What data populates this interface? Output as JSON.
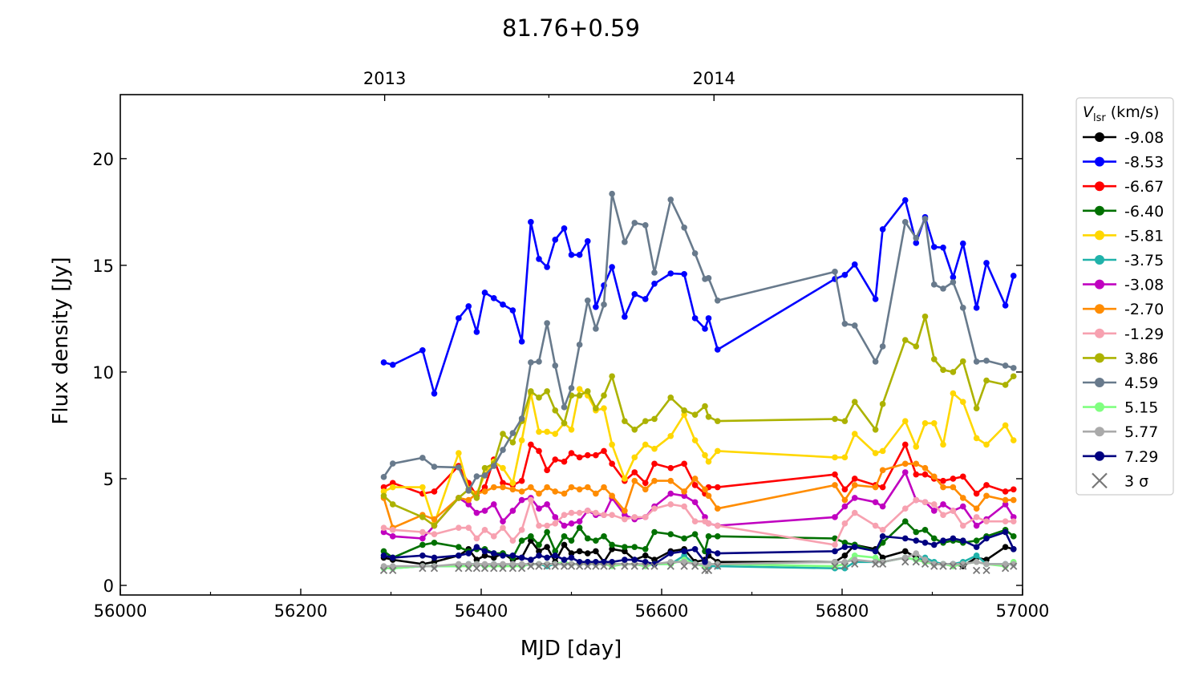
{
  "chart_data": {
    "type": "line",
    "title": "81.76+0.59",
    "xlabel": "MJD [day]",
    "ylabel": "Flux density [Jy]",
    "xlim": [
      56000,
      57000
    ],
    "ylim": [
      -0.45,
      23
    ],
    "xticks": [
      56000,
      56200,
      56400,
      56600,
      56800,
      57000
    ],
    "xminor": [
      56100,
      56300,
      56500,
      56700,
      56900
    ],
    "yticks": [
      0,
      5,
      10,
      15,
      20
    ],
    "top_axis": {
      "ticks": [
        {
          "mjd": 56293,
          "label": "2013"
        },
        {
          "mjd": 56658,
          "label": "2014"
        }
      ],
      "minor": [
        56475
      ]
    },
    "legend": {
      "title_main": "V",
      "title_sub": "lsr",
      "title_rest": " (km/s)",
      "placement": "outside-right",
      "sigma_label": "3 σ"
    },
    "x": [
      56292,
      56302,
      56335,
      56348,
      56375,
      56386,
      56395,
      56404,
      56414,
      56424,
      56435,
      56445,
      56455,
      56464,
      56473,
      56482,
      56492,
      56500,
      56509,
      56518,
      56527,
      56536,
      56545,
      56559,
      56570,
      56582,
      56592,
      56610,
      56625,
      56637,
      56648,
      56652,
      56662,
      56792,
      56803,
      56814,
      56837,
      56845,
      56870,
      56882,
      56892,
      56902,
      56912,
      56923,
      56934,
      56949,
      56960,
      56981,
      56990
    ],
    "series": [
      {
        "name": "-9.08",
        "color": "#000000",
        "values": [
          1.3,
          1.2,
          1.0,
          1.1,
          1.4,
          1.7,
          1.2,
          1.4,
          1.3,
          1.5,
          1.2,
          1.3,
          2.1,
          1.6,
          1.8,
          1.1,
          1.9,
          1.5,
          1.6,
          1.5,
          1.6,
          1.1,
          1.7,
          1.6,
          1.2,
          1.4,
          1.2,
          1.6,
          1.7,
          1.1,
          1.2,
          1.4,
          1.1,
          1.1,
          1.4,
          1.9,
          1.7,
          1.3,
          1.6,
          1.3,
          1.1,
          1.0,
          1.0,
          1.0,
          0.9,
          1.3,
          1.2,
          1.8,
          1.7
        ]
      },
      {
        "name": "-8.53",
        "color": "#0000ff",
        "values": [
          10.45,
          10.34,
          11.02,
          8.99,
          12.52,
          13.08,
          11.88,
          13.72,
          13.46,
          13.16,
          12.89,
          11.43,
          17.03,
          15.3,
          14.92,
          16.2,
          16.73,
          15.49,
          15.49,
          16.13,
          13.05,
          14.06,
          14.92,
          12.59,
          13.65,
          13.42,
          14.14,
          14.62,
          14.59,
          12.52,
          12.03,
          12.52,
          11.05,
          14.36,
          14.55,
          15.04,
          13.42,
          16.69,
          18.05,
          16.05,
          17.26,
          15.86,
          15.83,
          14.44,
          16.02,
          13.01,
          15.11,
          13.12,
          14.51
        ]
      },
      {
        "name": "-6.67",
        "color": "#ff0000",
        "values": [
          4.6,
          4.8,
          4.3,
          4.4,
          5.6,
          4.8,
          4.2,
          4.6,
          5.9,
          4.8,
          4.7,
          4.9,
          6.6,
          6.3,
          5.4,
          5.9,
          5.8,
          6.2,
          6.0,
          6.1,
          6.1,
          6.3,
          5.7,
          4.9,
          5.3,
          4.8,
          5.7,
          5.5,
          5.7,
          4.7,
          4.3,
          4.6,
          4.6,
          5.2,
          4.5,
          5.0,
          4.7,
          4.6,
          6.6,
          5.2,
          5.2,
          5.0,
          4.9,
          5.0,
          5.1,
          4.3,
          4.7,
          4.4,
          4.5
        ]
      },
      {
        "name": "-6.40",
        "color": "#007000",
        "values": [
          1.6,
          1.3,
          1.9,
          2.0,
          1.8,
          1.6,
          1.7,
          1.7,
          1.5,
          1.5,
          1.3,
          2.1,
          2.3,
          1.9,
          2.5,
          1.6,
          2.3,
          2.1,
          2.7,
          2.2,
          2.1,
          2.3,
          1.9,
          1.8,
          1.8,
          1.7,
          2.5,
          2.4,
          2.2,
          2.4,
          1.6,
          2.3,
          2.3,
          2.2,
          2.0,
          1.9,
          1.6,
          2.0,
          3.0,
          2.5,
          2.6,
          2.2,
          2.0,
          2.1,
          2.0,
          2.1,
          2.3,
          2.6,
          2.3
        ]
      },
      {
        "name": "-5.81",
        "color": "#ffd700",
        "values": [
          4.4,
          4.6,
          4.6,
          2.9,
          6.2,
          4.5,
          4.3,
          5.2,
          5.8,
          5.5,
          4.8,
          6.8,
          9.0,
          7.2,
          7.2,
          7.1,
          7.6,
          7.3,
          9.2,
          8.9,
          8.2,
          8.3,
          6.6,
          5.0,
          6.0,
          6.6,
          6.4,
          7.0,
          8.0,
          6.8,
          6.1,
          5.8,
          6.3,
          6.0,
          6.0,
          7.1,
          6.2,
          6.3,
          7.7,
          6.5,
          7.6,
          7.6,
          6.6,
          9.0,
          8.6,
          6.9,
          6.6,
          7.5,
          6.8
        ]
      },
      {
        "name": "-3.75",
        "color": "#20b2aa",
        "values": [
          0.8,
          0.8,
          0.9,
          0.9,
          0.9,
          1.0,
          1.0,
          0.9,
          1.0,
          0.9,
          1.0,
          0.9,
          1.0,
          1.0,
          0.9,
          1.0,
          1.0,
          1.0,
          1.0,
          1.1,
          1.0,
          1.0,
          1.0,
          1.0,
          1.0,
          0.9,
          1.0,
          1.0,
          1.4,
          1.0,
          0.9,
          0.9,
          0.9,
          0.8,
          0.8,
          1.1,
          1.1,
          1.1,
          1.3,
          1.2,
          1.3,
          1.1,
          1.0,
          1.0,
          1.1,
          1.4,
          1.0,
          1.0,
          1.0
        ]
      },
      {
        "name": "-3.08",
        "color": "#c000c0",
        "values": [
          2.5,
          2.3,
          2.2,
          2.8,
          4.1,
          3.8,
          3.4,
          3.5,
          3.8,
          3.0,
          3.5,
          4.0,
          4.1,
          3.6,
          3.8,
          3.2,
          2.8,
          2.9,
          3.0,
          3.5,
          3.3,
          3.3,
          4.1,
          3.3,
          3.1,
          3.2,
          3.7,
          4.3,
          4.2,
          3.9,
          3.2,
          2.9,
          2.8,
          3.2,
          3.7,
          4.1,
          3.9,
          3.7,
          5.3,
          4.0,
          3.9,
          3.5,
          3.8,
          3.5,
          3.7,
          2.8,
          3.1,
          3.8,
          3.2
        ]
      },
      {
        "name": "-2.70",
        "color": "#ff8c00",
        "values": [
          4.1,
          2.7,
          3.3,
          3.1,
          4.1,
          4.0,
          4.3,
          4.4,
          4.6,
          4.6,
          4.5,
          4.4,
          4.6,
          4.3,
          4.6,
          4.4,
          4.3,
          4.6,
          4.5,
          4.6,
          4.3,
          4.6,
          4.2,
          3.5,
          4.9,
          4.5,
          4.9,
          4.9,
          4.4,
          5.0,
          4.5,
          4.2,
          3.6,
          4.7,
          4.0,
          4.7,
          4.6,
          5.4,
          5.7,
          5.7,
          5.5,
          5.1,
          4.6,
          4.6,
          4.1,
          3.6,
          4.2,
          4.0,
          4.0
        ]
      },
      {
        "name": "-1.29",
        "color": "#f7a1b0",
        "values": [
          2.7,
          2.6,
          2.5,
          2.4,
          2.7,
          2.7,
          2.2,
          2.6,
          2.3,
          2.7,
          2.1,
          2.6,
          4.0,
          2.8,
          2.8,
          2.9,
          3.3,
          3.4,
          3.4,
          3.5,
          3.4,
          3.3,
          3.3,
          3.1,
          3.2,
          3.2,
          3.6,
          3.8,
          3.7,
          3.0,
          3.0,
          2.9,
          2.8,
          1.9,
          2.9,
          3.4,
          2.8,
          2.6,
          3.6,
          4.0,
          3.9,
          3.8,
          3.3,
          3.5,
          2.8,
          3.2,
          3.0,
          3.0,
          3.0
        ]
      },
      {
        "name": "3.86",
        "color": "#acb200",
        "values": [
          4.2,
          3.8,
          3.2,
          2.8,
          4.1,
          4.5,
          4.1,
          5.5,
          5.7,
          7.1,
          6.7,
          7.7,
          9.1,
          8.8,
          9.1,
          8.2,
          7.6,
          8.9,
          8.9,
          9.1,
          8.3,
          8.9,
          9.8,
          7.7,
          7.3,
          7.7,
          7.8,
          8.8,
          8.2,
          8.0,
          8.4,
          7.9,
          7.7,
          7.8,
          7.7,
          8.6,
          7.3,
          8.5,
          11.5,
          11.2,
          12.6,
          10.6,
          10.1,
          10.0,
          10.5,
          8.3,
          9.6,
          9.4,
          9.8
        ]
      },
      {
        "name": "4.59",
        "color": "#687a8c",
        "values": [
          5.08,
          5.71,
          5.98,
          5.56,
          5.53,
          4.44,
          5.11,
          5.15,
          5.6,
          6.35,
          7.14,
          7.82,
          10.45,
          10.49,
          12.29,
          10.3,
          8.35,
          9.25,
          11.28,
          13.35,
          12.03,
          13.16,
          18.35,
          16.09,
          16.99,
          16.88,
          14.66,
          18.08,
          16.77,
          15.56,
          14.36,
          14.4,
          13.35,
          14.7,
          12.26,
          12.18,
          10.49,
          11.2,
          17.03,
          16.28,
          17.18,
          14.1,
          13.91,
          14.21,
          13.01,
          10.49,
          10.53,
          10.3,
          10.19
        ]
      },
      {
        "name": "5.15",
        "color": "#80ff80",
        "values": [
          0.8,
          0.8,
          0.9,
          0.9,
          0.9,
          0.9,
          1.0,
          0.9,
          0.9,
          0.9,
          0.9,
          0.9,
          1.0,
          1.0,
          1.0,
          1.0,
          1.1,
          1.0,
          1.0,
          1.0,
          1.0,
          1.0,
          0.9,
          1.0,
          1.0,
          0.9,
          1.0,
          1.0,
          1.2,
          1.0,
          0.9,
          1.0,
          1.0,
          0.9,
          1.0,
          1.4,
          1.3,
          1.1,
          1.3,
          1.2,
          1.1,
          1.0,
          1.0,
          0.9,
          1.0,
          1.1,
          1.0,
          0.9,
          1.1
        ]
      },
      {
        "name": "5.77",
        "color": "#aaaaaa",
        "values": [
          0.9,
          0.9,
          0.9,
          0.9,
          1.0,
          1.0,
          1.0,
          1.0,
          1.0,
          1.0,
          1.0,
          1.0,
          1.0,
          1.0,
          1.0,
          1.0,
          1.0,
          1.0,
          1.0,
          1.0,
          1.0,
          1.0,
          1.0,
          1.0,
          1.0,
          1.0,
          1.0,
          1.1,
          1.1,
          1.0,
          1.0,
          1.0,
          1.0,
          1.1,
          1.1,
          1.2,
          1.1,
          1.1,
          1.3,
          1.5,
          1.2,
          1.0,
          1.0,
          1.0,
          1.0,
          1.1,
          1.0,
          1.0,
          1.0
        ]
      },
      {
        "name": "7.29",
        "color": "#000080",
        "values": [
          1.4,
          1.3,
          1.4,
          1.3,
          1.4,
          1.5,
          1.8,
          1.6,
          1.5,
          1.4,
          1.4,
          1.3,
          1.2,
          1.4,
          1.3,
          1.4,
          1.2,
          1.3,
          1.1,
          1.1,
          1.1,
          1.1,
          1.1,
          1.2,
          1.2,
          1.1,
          1.0,
          1.5,
          1.6,
          1.7,
          1.1,
          1.6,
          1.5,
          1.6,
          1.8,
          1.8,
          1.6,
          2.3,
          2.2,
          2.1,
          2.0,
          1.9,
          2.1,
          2.2,
          2.1,
          1.8,
          2.2,
          2.5,
          1.7
        ]
      }
    ],
    "sigma3": {
      "name": "3 σ",
      "color": "#777777",
      "values": [
        0.7,
        0.7,
        0.8,
        0.8,
        0.8,
        0.8,
        0.8,
        0.8,
        0.8,
        0.8,
        0.8,
        0.8,
        0.9,
        0.9,
        0.9,
        0.9,
        0.9,
        0.9,
        0.9,
        0.9,
        0.9,
        0.9,
        0.9,
        0.9,
        0.9,
        0.9,
        0.9,
        0.9,
        0.9,
        0.9,
        0.7,
        0.7,
        0.9,
        0.9,
        0.9,
        1.0,
        1.0,
        1.0,
        1.1,
        1.1,
        1.0,
        0.9,
        0.9,
        0.9,
        0.9,
        0.7,
        0.7,
        0.8,
        0.9
      ]
    }
  }
}
